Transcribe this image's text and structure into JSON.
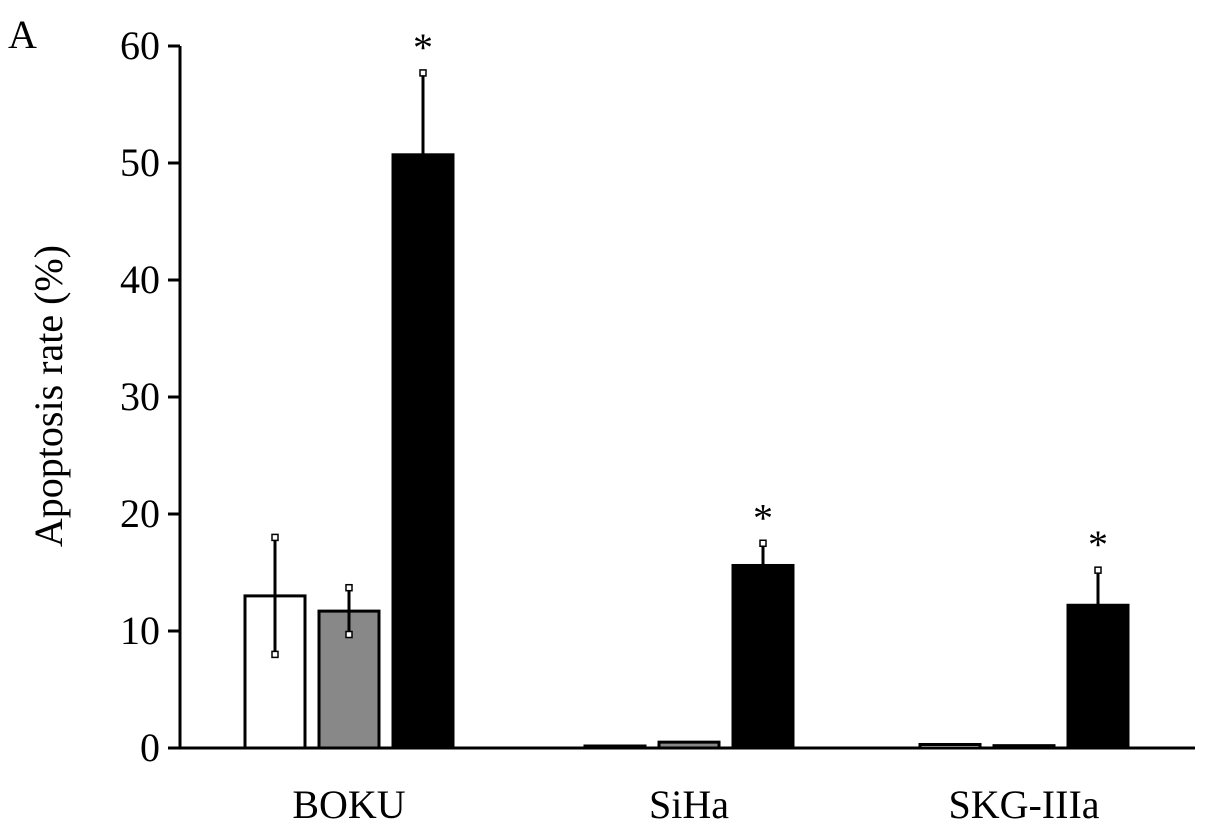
{
  "chart_data": {
    "type": "bar",
    "panel_label": "A",
    "title": "",
    "xlabel": "",
    "ylabel": "Apoptosis rate (%)",
    "ylim": [
      0,
      60
    ],
    "yticks": [
      0,
      10,
      20,
      30,
      40,
      50,
      60
    ],
    "grid": false,
    "legend": "none",
    "categories": [
      "BOKU",
      "SiHa",
      "SKG-IIIa"
    ],
    "series": [
      {
        "color": "#ffffff",
        "values": [
          13.0,
          0.1,
          0.3
        ],
        "errors": [
          5.0,
          0,
          0
        ]
      },
      {
        "color": "#888888",
        "values": [
          11.7,
          0.5,
          0.2
        ],
        "errors": [
          2.0,
          0,
          0
        ]
      },
      {
        "color": "#000000",
        "values": [
          50.7,
          15.6,
          12.2
        ],
        "errors": [
          7.0,
          1.9,
          3.0
        ]
      }
    ],
    "significance": [
      {
        "category": "BOKU",
        "series": 2,
        "text": "*"
      },
      {
        "category": "SiHa",
        "series": 2,
        "text": "*"
      },
      {
        "category": "SKG-IIIa",
        "series": 2,
        "text": "*"
      }
    ]
  }
}
